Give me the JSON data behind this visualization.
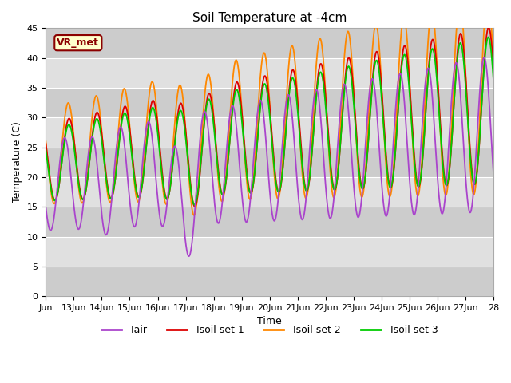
{
  "title": "Soil Temperature at -4cm",
  "xlabel": "Time",
  "ylabel": "Temperature (C)",
  "ylim": [
    0,
    45
  ],
  "xlim_days": [
    0,
    16
  ],
  "background_color": "#ffffff",
  "plot_bg_color": "#d8d8d8",
  "grid_color": "#ffffff",
  "annotation_text": "VR_met",
  "annotation_bg": "#ffffcc",
  "annotation_border": "#8b0000",
  "annotation_text_color": "#8b0000",
  "colors": {
    "Tair": "#aa44cc",
    "Tsoil1": "#dd0000",
    "Tsoil2": "#ff8800",
    "Tsoil3": "#00cc00"
  },
  "legend_labels": [
    "Tair",
    "Tsoil set 1",
    "Tsoil set 2",
    "Tsoil set 3"
  ],
  "xtick_labels": [
    "Jun",
    "13Jun",
    "14Jun",
    "15Jun",
    "16Jun",
    "17Jun",
    "18Jun",
    "19Jun",
    "20Jun",
    "21Jun",
    "22Jun",
    "23Jun",
    "24Jun",
    "25Jun",
    "26Jun",
    "27Jun",
    "28"
  ],
  "xtick_positions": [
    0,
    1,
    2,
    3,
    4,
    5,
    6,
    7,
    8,
    9,
    10,
    11,
    12,
    13,
    14,
    15,
    16
  ],
  "ytick_positions": [
    0,
    5,
    10,
    15,
    20,
    25,
    30,
    35,
    40,
    45
  ],
  "band_colors": [
    "#cccccc",
    "#e0e0e0"
  ]
}
